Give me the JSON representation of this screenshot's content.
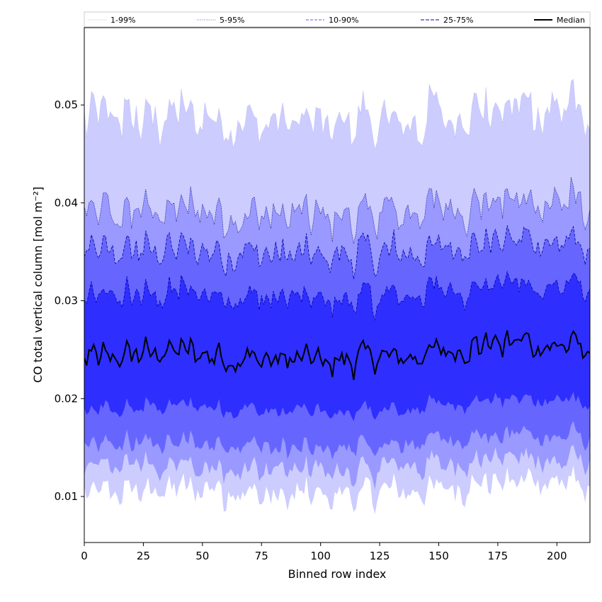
{
  "chart_data": {
    "type": "area",
    "title": "",
    "xlabel": "Binned row index",
    "ylabel": "CO total vertical column [mol m⁻²]",
    "xlim": [
      0,
      214
    ],
    "ylim": [
      0.0053,
      0.0579
    ],
    "x_ticks": [
      0,
      25,
      50,
      75,
      100,
      125,
      150,
      175,
      200
    ],
    "y_ticks": [
      0.01,
      0.02,
      0.03,
      0.04,
      0.05
    ],
    "x_tick_labels": [
      "0",
      "25",
      "50",
      "75",
      "100",
      "125",
      "150",
      "175",
      "200"
    ],
    "y_tick_labels": [
      "0.01",
      "0.02",
      "0.03",
      "0.04",
      "0.05"
    ],
    "grid": false,
    "legend_position": "top",
    "n_points": 215,
    "series": [
      {
        "name": "1-99%",
        "lower": 0.01,
        "upper": 0.048,
        "fill_color": "#ccccff",
        "line_color": "#b0b0ee",
        "line_style": "dotted"
      },
      {
        "name": "5-95%",
        "lower": 0.0125,
        "upper": 0.0385,
        "fill_color": "#9999ff",
        "line_color": "#00007a",
        "line_style": "dotted"
      },
      {
        "name": "10-90%",
        "lower": 0.0148,
        "upper": 0.0345,
        "fill_color": "#6666ff",
        "line_color": "#00009a",
        "line_style": "dashed"
      },
      {
        "name": "25-75%",
        "lower": 0.0185,
        "upper": 0.03,
        "fill_color": "#2e2eff",
        "line_color": "#0000b0",
        "line_style": "dashed"
      },
      {
        "name": "Median",
        "value": 0.0238,
        "line_color": "#000000",
        "line_style": "solid"
      }
    ]
  }
}
